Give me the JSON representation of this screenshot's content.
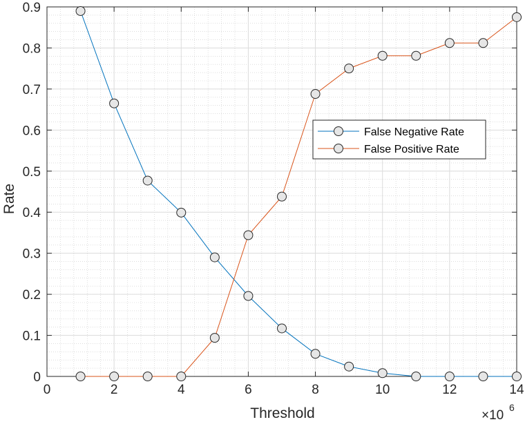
{
  "chart_data": {
    "type": "line",
    "xlabel": "Threshold",
    "ylabel": "Rate",
    "x_exponent_base": "×10",
    "x_exponent_power": "6",
    "xlim": [
      0,
      14
    ],
    "ylim": [
      0,
      0.9
    ],
    "xticks": [
      0,
      2,
      4,
      6,
      8,
      10,
      12,
      14
    ],
    "yticks": [
      0,
      0.1,
      0.2,
      0.3,
      0.4,
      0.5,
      0.6,
      0.7,
      0.8,
      0.9
    ],
    "xtick_labels": [
      "0",
      "2",
      "4",
      "6",
      "8",
      "10",
      "12",
      "14"
    ],
    "ytick_labels": [
      "0",
      "0.1",
      "0.2",
      "0.3",
      "0.4",
      "0.5",
      "0.6",
      "0.7",
      "0.8",
      "0.9"
    ],
    "grid": true,
    "minor_grid": true,
    "legend_position": "center-right",
    "x": [
      1,
      2,
      3,
      4,
      5,
      6,
      7,
      8,
      9,
      10,
      11,
      12,
      13,
      14
    ],
    "series": [
      {
        "name": "False Negative Rate",
        "color": "#0072BD",
        "values": [
          0.89,
          0.665,
          0.477,
          0.399,
          0.29,
          0.196,
          0.117,
          0.055,
          0.024,
          0.008,
          0.0,
          0.0,
          0.0,
          0.0
        ]
      },
      {
        "name": "False Positive Rate",
        "color": "#D95319",
        "values": [
          0.0,
          0.0,
          0.0,
          0.0,
          0.094,
          0.344,
          0.438,
          0.688,
          0.75,
          0.781,
          0.781,
          0.812,
          0.812,
          0.875
        ]
      }
    ],
    "marker_fill": "#e6e6e6"
  }
}
